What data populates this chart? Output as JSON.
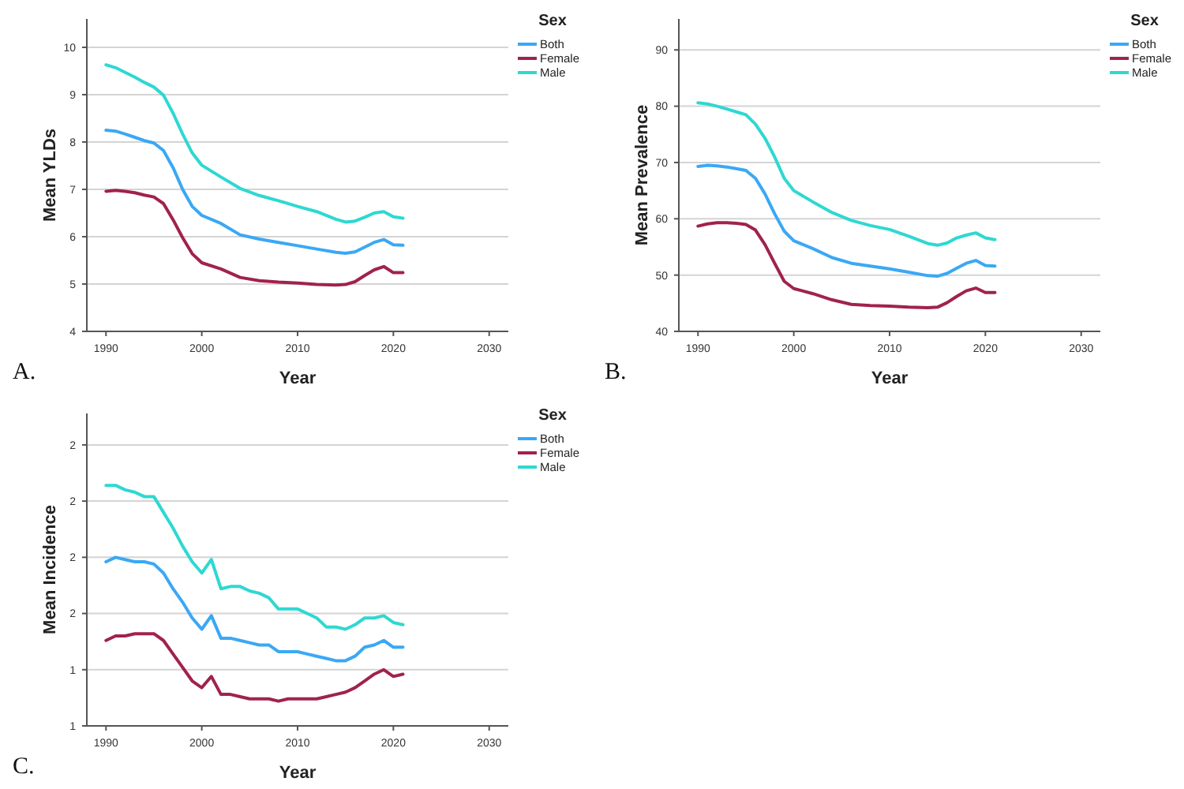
{
  "chart_data": [
    {
      "type": "line",
      "xlabel": "Year",
      "ylabel": "Mean YLDs",
      "legend_title": "Sex",
      "legend": "top right",
      "grid": "y",
      "annotations": [
        "A."
      ],
      "xlim": [
        1988,
        2032
      ],
      "xticks": [
        1990,
        2000,
        2010,
        2020,
        2030
      ],
      "ylim": [
        4,
        10.6
      ],
      "yticks": [
        4,
        5,
        6,
        7,
        8,
        9,
        10
      ],
      "x": [
        1990,
        1991,
        1992,
        1993,
        1994,
        1995,
        1996,
        1997,
        1998,
        1999,
        2000,
        2002,
        2004,
        2006,
        2008,
        2010,
        2012,
        2014,
        2015,
        2016,
        2017,
        2018,
        2019,
        2020,
        2021
      ],
      "series": [
        {
          "name": "Both",
          "color": "#3aa8f5",
          "values": [
            8.25,
            8.23,
            8.17,
            8.1,
            8.03,
            7.98,
            7.82,
            7.46,
            7.0,
            6.64,
            6.45,
            6.28,
            6.04,
            5.95,
            5.88,
            5.81,
            5.74,
            5.67,
            5.65,
            5.68,
            5.78,
            5.88,
            5.94,
            5.83,
            5.82
          ]
        },
        {
          "name": "Female",
          "color": "#a0224f",
          "values": [
            6.96,
            6.98,
            6.96,
            6.93,
            6.88,
            6.84,
            6.7,
            6.36,
            5.98,
            5.64,
            5.45,
            5.32,
            5.14,
            5.07,
            5.04,
            5.02,
            4.99,
            4.98,
            4.99,
            5.05,
            5.18,
            5.3,
            5.37,
            5.24,
            5.24
          ]
        },
        {
          "name": "Male",
          "color": "#2ed8d2",
          "values": [
            9.63,
            9.57,
            9.47,
            9.37,
            9.26,
            9.16,
            8.99,
            8.61,
            8.17,
            7.77,
            7.51,
            7.26,
            7.02,
            6.87,
            6.76,
            6.64,
            6.53,
            6.37,
            6.31,
            6.33,
            6.41,
            6.5,
            6.53,
            6.42,
            6.39
          ]
        }
      ]
    },
    {
      "type": "line",
      "xlabel": "Year",
      "ylabel": "Mean Prevalence",
      "legend_title": "Sex",
      "legend": "top right",
      "grid": "y",
      "annotations": [
        "B."
      ],
      "xlim": [
        1988,
        2032
      ],
      "xticks": [
        1990,
        2000,
        2010,
        2020,
        2030
      ],
      "ylim": [
        40,
        95.5
      ],
      "yticks": [
        40,
        50,
        60,
        70,
        80,
        90
      ],
      "x": [
        1990,
        1991,
        1992,
        1993,
        1994,
        1995,
        1996,
        1997,
        1998,
        1999,
        2000,
        2002,
        2004,
        2006,
        2008,
        2010,
        2012,
        2014,
        2015,
        2016,
        2017,
        2018,
        2019,
        2020,
        2021
      ],
      "series": [
        {
          "name": "Both",
          "color": "#3aa8f5",
          "values": [
            69.3,
            69.5,
            69.4,
            69.2,
            68.9,
            68.6,
            67.2,
            64.4,
            60.9,
            57.8,
            56.1,
            54.7,
            53.1,
            52.1,
            51.6,
            51.1,
            50.5,
            49.9,
            49.8,
            50.3,
            51.2,
            52.1,
            52.6,
            51.7,
            51.6
          ]
        },
        {
          "name": "Female",
          "color": "#a0224f",
          "values": [
            58.7,
            59.1,
            59.3,
            59.3,
            59.2,
            59.0,
            58.0,
            55.4,
            52.1,
            48.9,
            47.6,
            46.7,
            45.6,
            44.8,
            44.6,
            44.5,
            44.3,
            44.2,
            44.3,
            45.1,
            46.2,
            47.2,
            47.7,
            46.9,
            46.9
          ]
        },
        {
          "name": "Male",
          "color": "#2ed8d2",
          "values": [
            80.6,
            80.4,
            80.0,
            79.5,
            79.0,
            78.5,
            76.8,
            74.3,
            71.0,
            67.2,
            65.0,
            63.0,
            61.1,
            59.7,
            58.8,
            58.1,
            56.9,
            55.6,
            55.3,
            55.7,
            56.6,
            57.1,
            57.5,
            56.6,
            56.3
          ]
        }
      ]
    },
    {
      "type": "line",
      "xlabel": "Year",
      "ylabel": "Mean Incidence",
      "legend_title": "Sex",
      "legend": "top right",
      "grid": "y",
      "annotations": [
        "C."
      ],
      "xlim": [
        1988,
        2032
      ],
      "xticks": [
        1990,
        2000,
        2010,
        2020,
        2030
      ],
      "ylim": [
        1,
        2.39
      ],
      "yticks": [
        {
          "value": 1,
          "label": "1"
        },
        {
          "value": 1.25,
          "label": "1"
        },
        {
          "value": 1.5,
          "label": "2"
        },
        {
          "value": 1.75,
          "label": "2"
        },
        {
          "value": 2,
          "label": "2"
        },
        {
          "value": 2.25,
          "label": "2"
        }
      ],
      "x": [
        1990,
        1991,
        1992,
        1993,
        1994,
        1995,
        1996,
        1997,
        1998,
        1999,
        2000,
        2001,
        2002,
        2003,
        2004,
        2005,
        2006,
        2007,
        2008,
        2009,
        2010,
        2011,
        2012,
        2013,
        2014,
        2015,
        2016,
        2017,
        2018,
        2019,
        2020,
        2021
      ],
      "series": [
        {
          "name": "Both",
          "color": "#3aa8f5",
          "values": [
            1.73,
            1.75,
            1.74,
            1.73,
            1.73,
            1.72,
            1.68,
            1.61,
            1.55,
            1.48,
            1.43,
            1.49,
            1.39,
            1.39,
            1.38,
            1.37,
            1.36,
            1.36,
            1.33,
            1.33,
            1.33,
            1.32,
            1.31,
            1.3,
            1.29,
            1.29,
            1.31,
            1.35,
            1.36,
            1.38,
            1.35,
            1.35
          ]
        },
        {
          "name": "Female",
          "color": "#a0224f",
          "values": [
            1.38,
            1.4,
            1.4,
            1.41,
            1.41,
            1.41,
            1.38,
            1.32,
            1.26,
            1.2,
            1.17,
            1.22,
            1.14,
            1.14,
            1.13,
            1.12,
            1.12,
            1.12,
            1.11,
            1.12,
            1.12,
            1.12,
            1.12,
            1.13,
            1.14,
            1.15,
            1.17,
            1.2,
            1.23,
            1.25,
            1.22,
            1.23
          ]
        },
        {
          "name": "Male",
          "color": "#2ed8d2",
          "values": [
            2.07,
            2.07,
            2.05,
            2.04,
            2.02,
            2.02,
            1.95,
            1.88,
            1.8,
            1.73,
            1.68,
            1.74,
            1.61,
            1.62,
            1.62,
            1.6,
            1.59,
            1.57,
            1.52,
            1.52,
            1.52,
            1.5,
            1.48,
            1.44,
            1.44,
            1.43,
            1.45,
            1.48,
            1.48,
            1.49,
            1.46,
            1.45
          ]
        }
      ]
    }
  ]
}
